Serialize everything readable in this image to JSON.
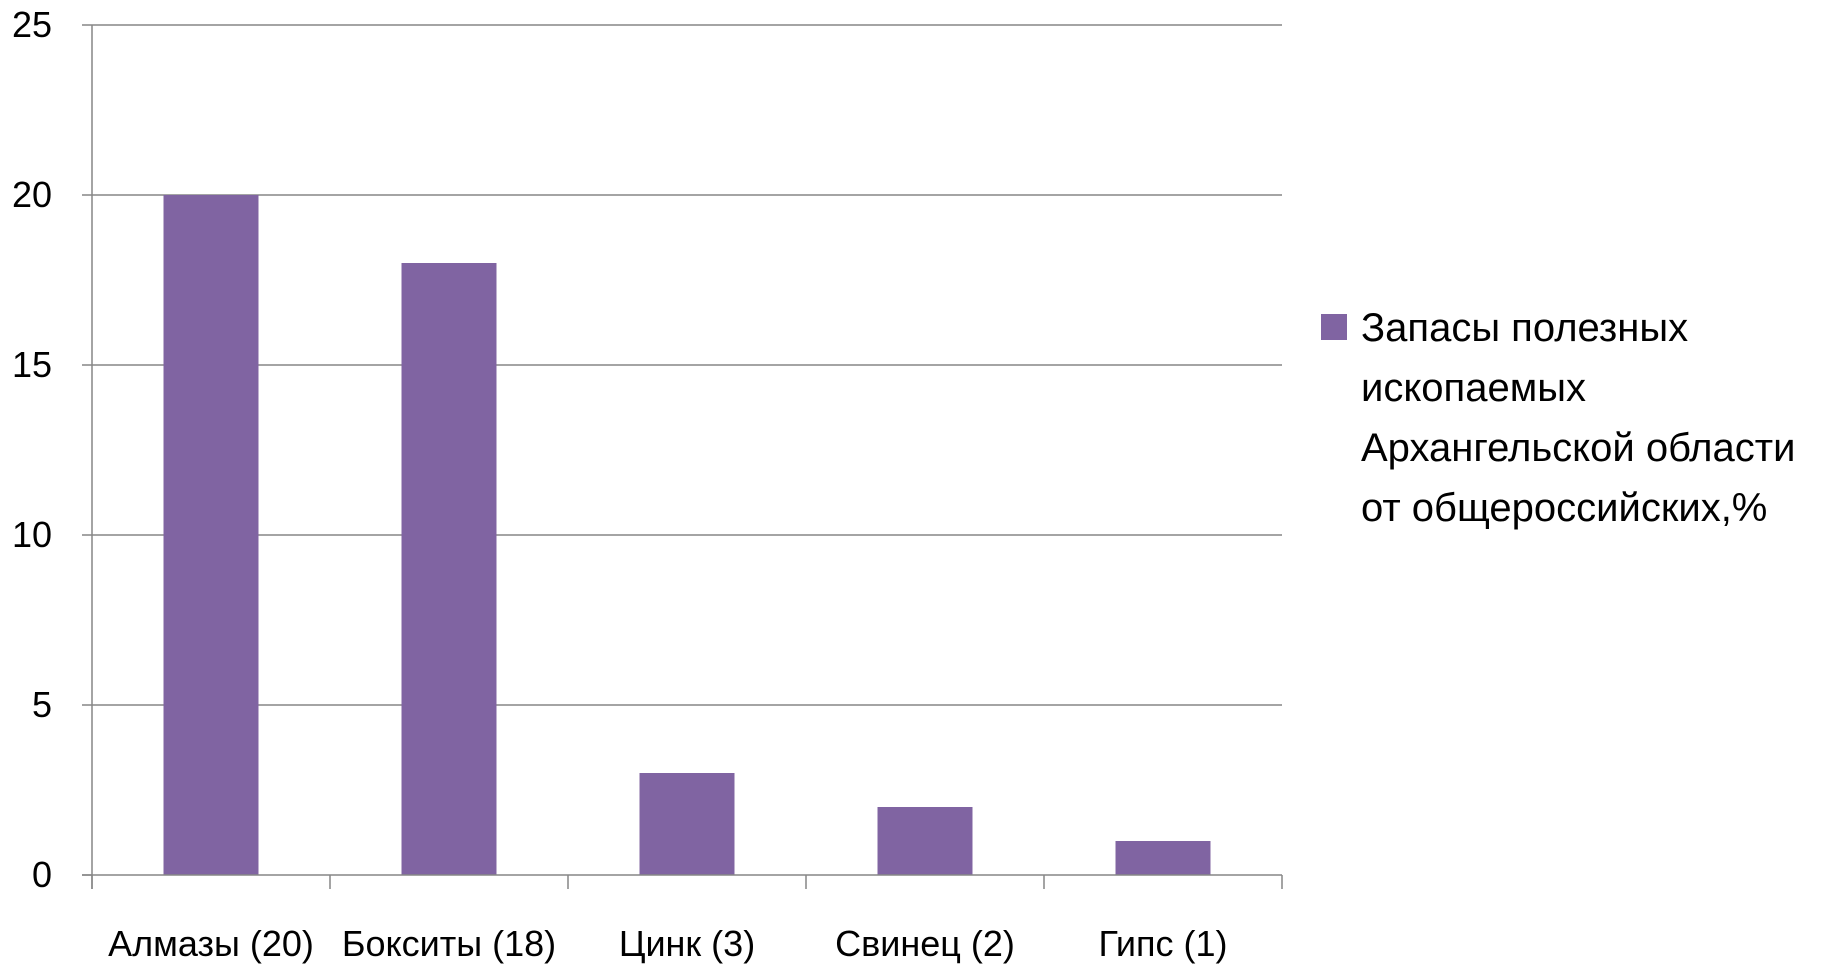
{
  "chart_data": {
    "type": "bar",
    "categories": [
      "Алмазы (20)",
      "Бокситы (18)",
      "Цинк (3)",
      "Свинец (2)",
      "Гипс (1)"
    ],
    "series": [
      {
        "name": "Запасы полезных ископаемых Архангельской области от общероссийских,%",
        "values": [
          20,
          18,
          3,
          2,
          1
        ],
        "color": "#8064A2"
      }
    ],
    "title": "",
    "xlabel": "",
    "ylabel": "",
    "ylim": [
      0,
      25
    ],
    "yticks": [
      0,
      5,
      10,
      15,
      20,
      25
    ],
    "grid": true,
    "legend_position": "right",
    "legend_lines": [
      "Запасы полезных",
      "ископаемых",
      "Архангельской области",
      "от общероссийских,%"
    ]
  },
  "colors": {
    "bar": "#8064A2",
    "grid": "#868686",
    "axis": "#868686",
    "text": "#000000"
  }
}
